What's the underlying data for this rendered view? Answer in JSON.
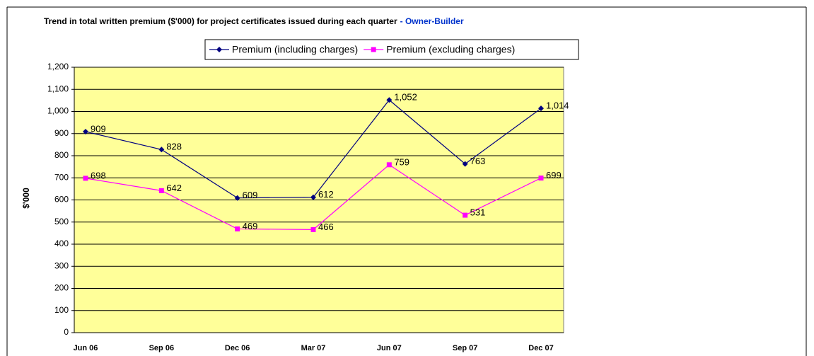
{
  "chart_data": {
    "type": "line",
    "title": "Trend in total written premium ($'000) for project certificates issued during each quarter",
    "subtitle": "- Owner-Builder",
    "y_label": "$'000",
    "categories": [
      "Jun 06",
      "Sep 06",
      "Dec 06",
      "Mar 07",
      "Jun 07",
      "Sep 07",
      "Dec 07"
    ],
    "series": [
      {
        "name": "Premium (including charges)",
        "color": "#000080",
        "marker": "diamond",
        "values": [
          909,
          828,
          609,
          612,
          1052,
          763,
          1014
        ],
        "value_labels": [
          "909",
          "828",
          "609",
          "612",
          "1,052",
          "763",
          "1,014"
        ]
      },
      {
        "name": "Premium (excluding charges)",
        "color": "#ff00ff",
        "marker": "square",
        "values": [
          698,
          642,
          469,
          466,
          759,
          531,
          699
        ]
      }
    ],
    "ylim": [
      0,
      1200
    ],
    "yticks": [
      0,
      100,
      200,
      300,
      400,
      500,
      600,
      700,
      800,
      900,
      {
        "value": 1000,
        "label": "1,000"
      },
      {
        "value": 1100,
        "label": "1,100"
      },
      {
        "value": 1200,
        "label": "1,200"
      }
    ],
    "grid": true,
    "plot_background": "#ffff99",
    "legend": "top"
  }
}
